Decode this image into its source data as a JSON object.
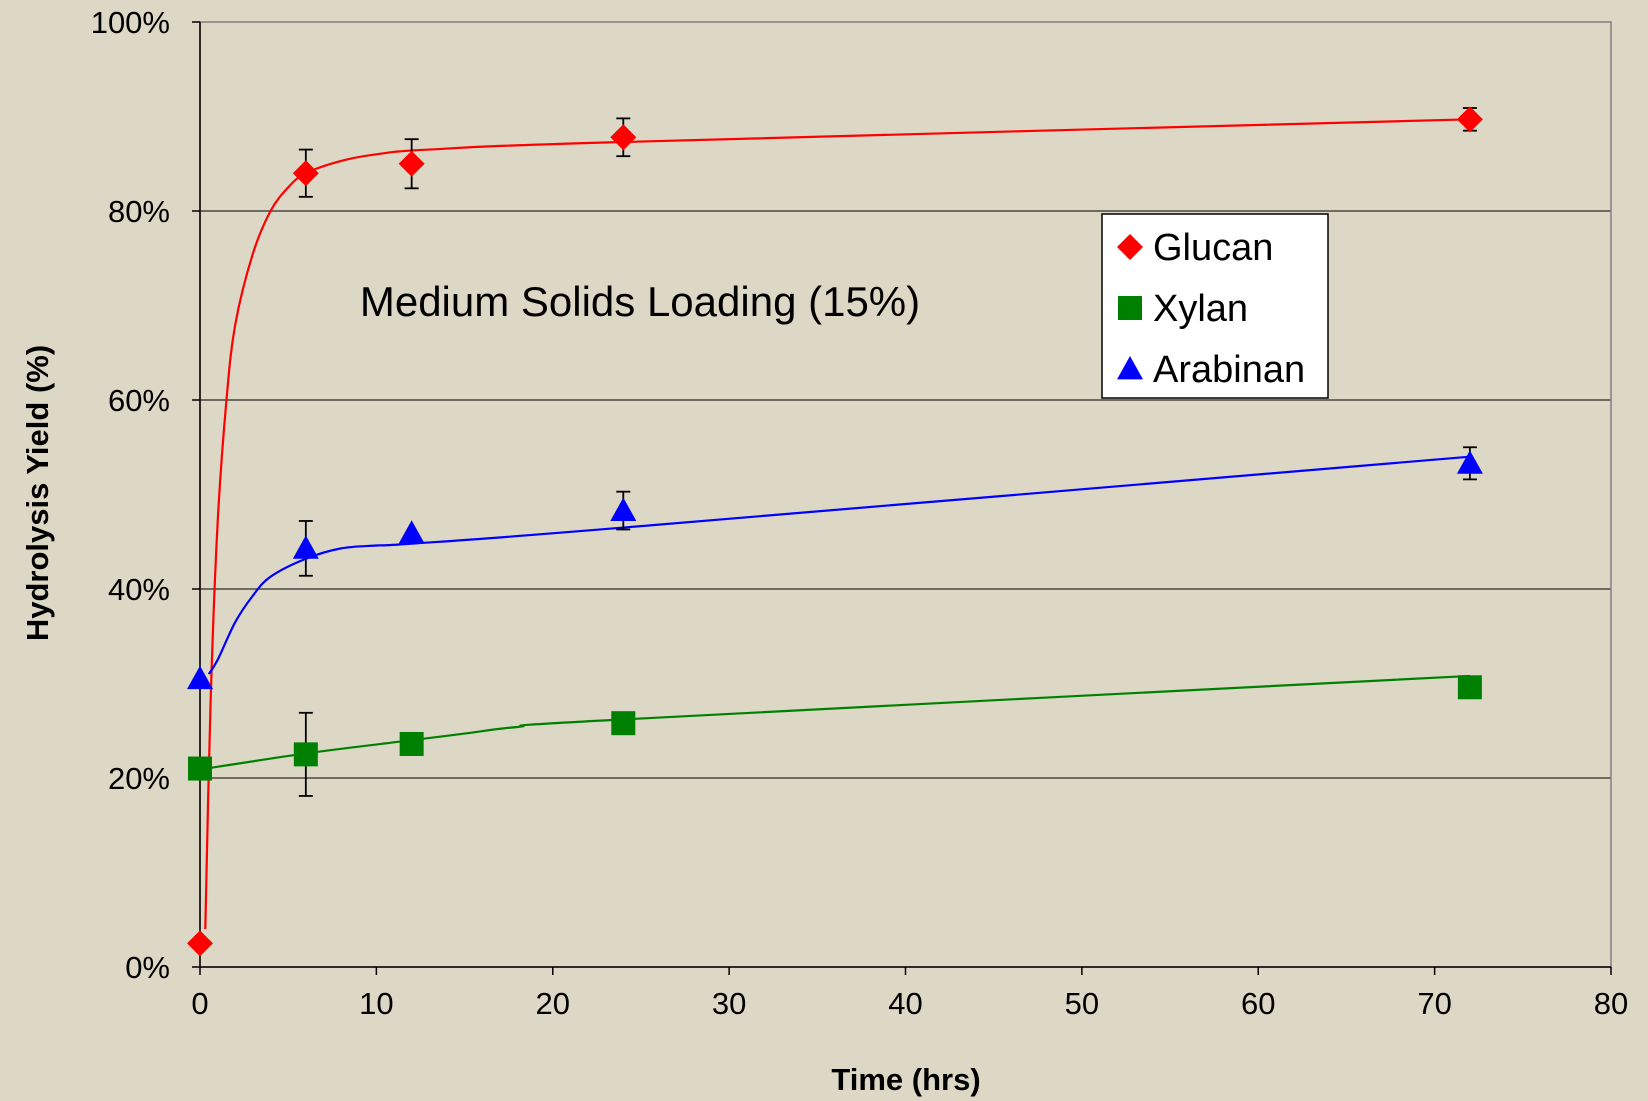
{
  "chart_data": {
    "type": "scatter",
    "title": "",
    "xlabel": "Time (hrs)",
    "ylabel": "Hydrolysis Yield (%)",
    "xlim": [
      0,
      80
    ],
    "ylim": [
      0,
      100
    ],
    "x_ticks": [
      0,
      10,
      20,
      30,
      40,
      50,
      60,
      70,
      80
    ],
    "y_ticks": [
      0,
      20,
      40,
      60,
      80,
      100
    ],
    "x_tick_labels": [
      "0",
      "10",
      "20",
      "30",
      "40",
      "50",
      "60",
      "70",
      "80"
    ],
    "y_tick_labels": [
      "0%",
      "20%",
      "40%",
      "60%",
      "80%",
      "100%"
    ],
    "grid": "horizontal",
    "annotation": "Medium Solids Loading (15%)",
    "legend_position": "upper-right",
    "series": [
      {
        "name": "Glucan",
        "color": "#ff0000",
        "marker": "diamond",
        "x": [
          0,
          6,
          12,
          24,
          72
        ],
        "y": [
          2.5,
          84,
          85,
          87.8,
          89.7
        ],
        "err": [
          0,
          2.5,
          2.6,
          2,
          1.2
        ],
        "fit_x": [
          0.3,
          0.6,
          1,
          1.5,
          2,
          3,
          4,
          5,
          6,
          8,
          10,
          13,
          24,
          72
        ],
        "fit_y": [
          4,
          28,
          47,
          60,
          68,
          75.5,
          80,
          82.5,
          84,
          85.3,
          86,
          86.5,
          87.3,
          89.7
        ]
      },
      {
        "name": "Xylan",
        "color": "#008000",
        "marker": "square",
        "x": [
          0,
          6,
          12,
          24,
          72
        ],
        "y": [
          21,
          22.5,
          23.6,
          25.8,
          29.6
        ],
        "err": [
          0,
          4.4,
          0,
          0,
          0
        ],
        "fit_x": [
          0,
          6,
          12,
          15,
          18,
          24,
          72
        ],
        "fit_y": [
          20.9,
          22.6,
          24,
          24.7,
          25.4,
          26.2,
          30.8
        ]
      },
      {
        "name": "Arabinan",
        "color": "#0000ff",
        "marker": "triangle",
        "x": [
          0,
          6,
          12,
          24,
          72
        ],
        "y": [
          30.5,
          44.3,
          45.9,
          48.3,
          53.3
        ],
        "err": [
          0,
          2.9,
          0,
          2,
          1.7
        ],
        "fit_x": [
          0.5,
          1,
          2,
          3,
          4,
          6,
          8,
          10,
          12,
          24,
          72
        ],
        "fit_y": [
          31,
          32.5,
          36.5,
          39.3,
          41.3,
          43.2,
          44.3,
          44.6,
          44.8,
          46.5,
          54
        ]
      }
    ]
  }
}
